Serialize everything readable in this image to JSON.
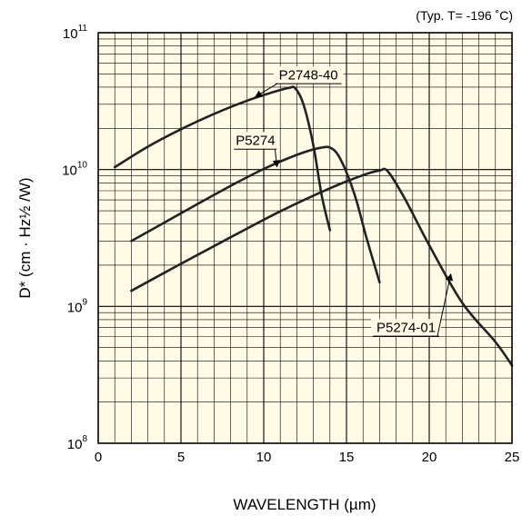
{
  "chart_data": {
    "type": "line",
    "title": "",
    "note": "(Typ. T= -196 ˚C)",
    "xlabel": "WAVELENGTH (µm)",
    "ylabel": "D* (cm · Hz½ /W)",
    "x_scale": "linear",
    "y_scale": "log",
    "xlim": [
      0,
      25
    ],
    "ylim": [
      100000000,
      100000000000
    ],
    "grid": true,
    "background_color": "#fffbe6",
    "line_color": "#222222",
    "x_ticks": [
      0,
      5,
      10,
      15,
      20,
      25
    ],
    "x_tick_labels": [
      "0",
      "5",
      "10",
      "15",
      "20",
      "25"
    ],
    "y_ticks": [
      {
        "value": 100000000,
        "base": "10",
        "exp": "8"
      },
      {
        "value": 1000000000,
        "base": "10",
        "exp": "9"
      },
      {
        "value": 10000000000,
        "base": "10",
        "exp": "10"
      },
      {
        "value": 100000000000,
        "base": "10",
        "exp": "11"
      }
    ],
    "series": [
      {
        "name": "P2748-40",
        "x": [
          1,
          3,
          5,
          7,
          9,
          10.5,
          11.5,
          11.9,
          12.4,
          13.0,
          13.5,
          14.0
        ],
        "y": [
          10400000000,
          14700000000,
          19700000000,
          25500000000,
          31900000000,
          36600000000,
          39400000000,
          39300000000,
          30000000000,
          15000000000,
          6500000000,
          3600000000
        ],
        "label_at": {
          "x": 12.7,
          "y": 49000000000
        },
        "pointer_to": {
          "x": 9.5,
          "y": 34000000000
        }
      },
      {
        "name": "P5274",
        "x": [
          2,
          4,
          6,
          8,
          10,
          12,
          13.4,
          14.1,
          14.7,
          15.5,
          16.2,
          17.0
        ],
        "y": [
          3000000000,
          4100000000,
          5600000000,
          7600000000,
          10100000000,
          12800000000,
          14400000000,
          14300000000,
          11500000000,
          6500000000,
          3200000000,
          1500000000
        ],
        "label_at": {
          "x": 9.5,
          "y": 16300000000
        },
        "pointer_to": {
          "x": 10.8,
          "y": 10500000000
        }
      },
      {
        "name": "P5274-01",
        "x": [
          2,
          5,
          8,
          11,
          14,
          16,
          17.0,
          17.5,
          18.5,
          20,
          22,
          24,
          25
        ],
        "y": [
          1300000000,
          2050000000,
          3200000000,
          4950000000,
          7300000000,
          9100000000,
          9850000000,
          9700000000,
          6200000000,
          2800000000,
          1060000000,
          550000000,
          370000000
        ],
        "label_at": {
          "x": 18.6,
          "y": 700000000
        },
        "pointer_to": {
          "x": 21.3,
          "y": 1720000000
        }
      }
    ]
  }
}
